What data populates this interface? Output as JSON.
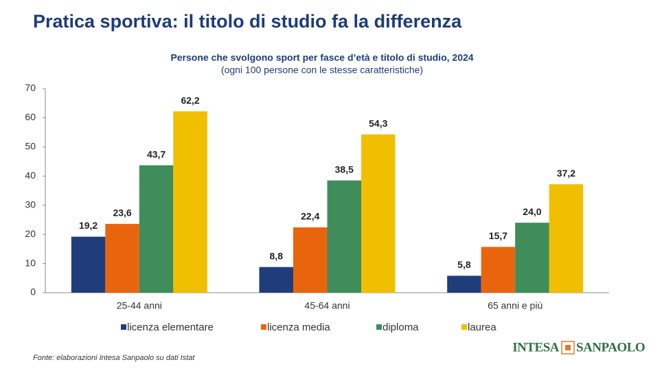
{
  "slide": {
    "title": "Pratica sportiva: il titolo di studio fa la differenza",
    "source": "Fonte: elaborazioni Intesa Sanpaolo su dati Istat"
  },
  "logo": {
    "left": "INTESA",
    "right": "SANPAOLO"
  },
  "chart_data": {
    "type": "bar",
    "title": "Persone che svolgono sport per fasce d’età e titolo di studio, 2024",
    "subtitle": "(ogni 100 persone con le stesse caratteristiche)",
    "categories": [
      "25-44 anni",
      "45-64 anni",
      "65 anni e più"
    ],
    "series": [
      {
        "name": "licenza elementare",
        "color": "#1f3d7a",
        "values": [
          19.2,
          8.8,
          5.8
        ],
        "value_labels": [
          "19,2",
          "8,8",
          "5,8"
        ]
      },
      {
        "name": "licenza media",
        "color": "#e8650d",
        "values": [
          23.6,
          22.4,
          15.7
        ],
        "value_labels": [
          "23,6",
          "22,4",
          "15,7"
        ]
      },
      {
        "name": "diploma",
        "color": "#3e8d5a",
        "values": [
          43.7,
          38.5,
          24.0
        ],
        "value_labels": [
          "43,7",
          "38,5",
          "24,0"
        ]
      },
      {
        "name": "laurea",
        "color": "#f0bf00",
        "values": [
          62.2,
          54.3,
          37.2
        ],
        "value_labels": [
          "62,2",
          "54,3",
          "37,2"
        ]
      }
    ],
    "ylim": [
      0,
      70
    ],
    "yticks": [
      0,
      10,
      20,
      30,
      40,
      50,
      60,
      70
    ],
    "grid": false,
    "legend": "bottom"
  }
}
